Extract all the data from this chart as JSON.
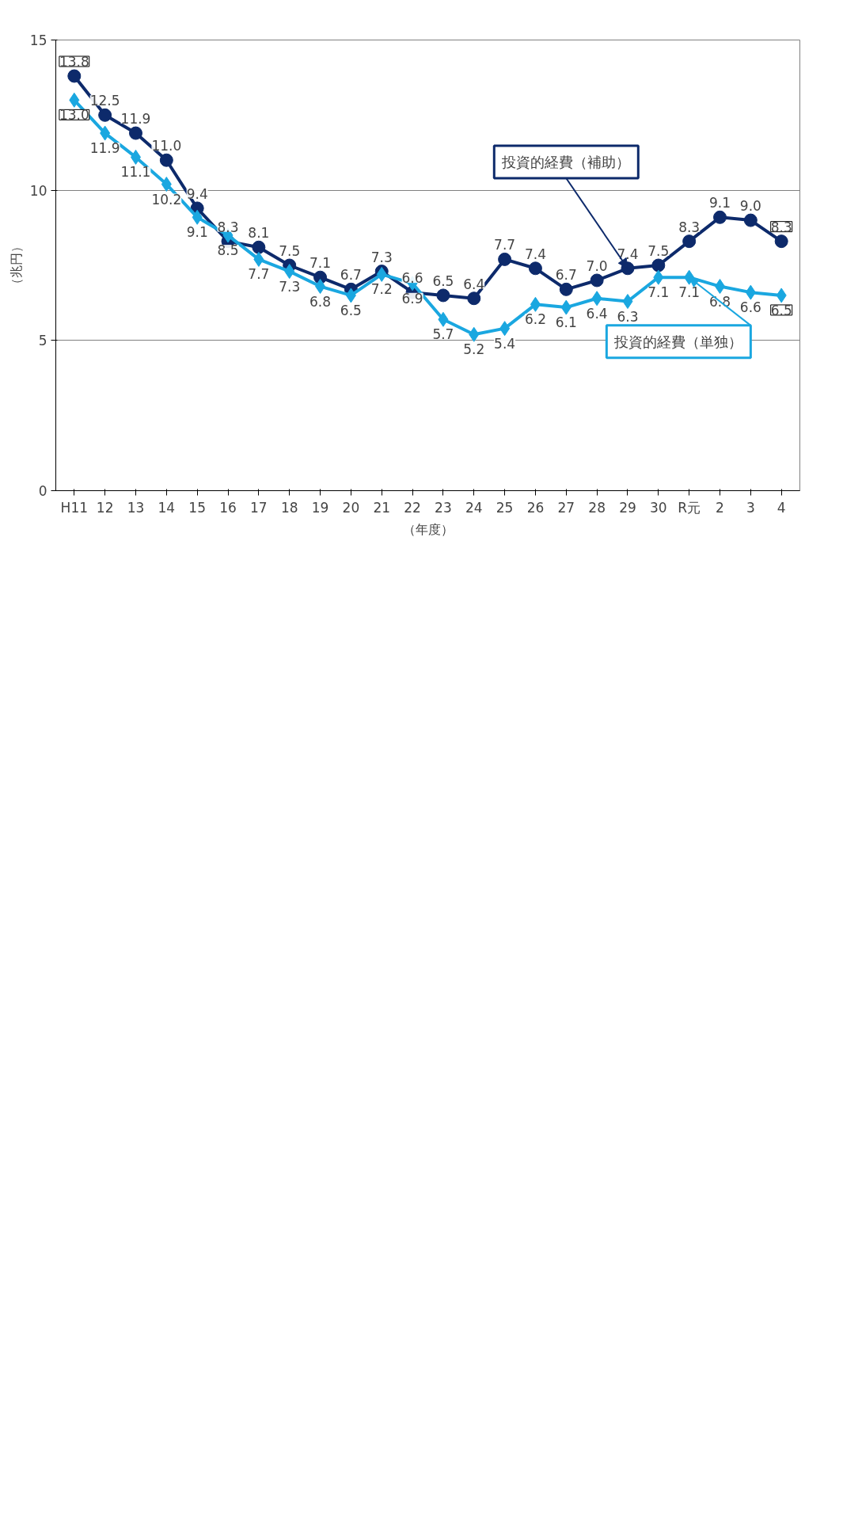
{
  "chart_data": {
    "type": "line",
    "xlabel": "（年度）",
    "ylabel": "（兆円）",
    "categories": [
      "H11",
      "12",
      "13",
      "14",
      "15",
      "16",
      "17",
      "18",
      "19",
      "20",
      "21",
      "22",
      "23",
      "24",
      "25",
      "26",
      "27",
      "28",
      "29",
      "30",
      "R元",
      "2",
      "3",
      "4"
    ],
    "series": [
      {
        "color": "#0d2a6b",
        "marker": "circle",
        "values": [
          13.8,
          12.5,
          11.9,
          11.0,
          9.4,
          8.3,
          8.1,
          7.5,
          7.1,
          6.7,
          7.3,
          6.6,
          6.5,
          6.4,
          7.7,
          7.4,
          6.7,
          7.0,
          7.4,
          7.5,
          8.3,
          9.1,
          9.0,
          8.3
        ],
        "value_labels": [
          "13.8",
          "12.5",
          "11.9",
          "11.0",
          "9.4",
          "8.3",
          "8.1",
          "7.5",
          "7.1",
          "6.7",
          "7.3",
          "6.6",
          "6.5",
          "6.4",
          "7.7",
          "7.4",
          "6.7",
          "7.0",
          "7.4",
          "7.5",
          "8.3",
          "9.1",
          "9.0",
          "8.3"
        ]
      },
      {
        "color": "#1aa7e0",
        "marker": "diamond",
        "values": [
          13.0,
          11.9,
          11.1,
          10.2,
          9.1,
          8.5,
          7.7,
          7.3,
          6.8,
          6.5,
          7.2,
          6.9,
          5.7,
          5.2,
          5.4,
          6.2,
          6.1,
          6.4,
          6.3,
          7.1,
          7.1,
          6.8,
          6.6,
          6.5
        ],
        "value_labels": [
          "13.0",
          "11.9",
          "11.1",
          "10.2",
          "9.1",
          "8.5",
          "7.7",
          "7.3",
          "6.8",
          "6.5",
          "7.2",
          "6.9",
          "5.7",
          "5.2",
          "5.4",
          "6.2",
          "6.1",
          "6.4",
          "6.3",
          "7.1",
          "7.1",
          "6.8",
          "6.6",
          "6.5"
        ]
      }
    ],
    "ylim": [
      0,
      15
    ],
    "yticks": [
      0,
      5,
      10,
      15
    ],
    "grid": "y",
    "line_style": "solid",
    "annotations": [
      {
        "text": "投資的経費（補助）",
        "x": "29",
        "y": 7.4
      },
      {
        "text": "投資的経費（単独）",
        "x": "R元",
        "y": 7.1
      }
    ]
  }
}
